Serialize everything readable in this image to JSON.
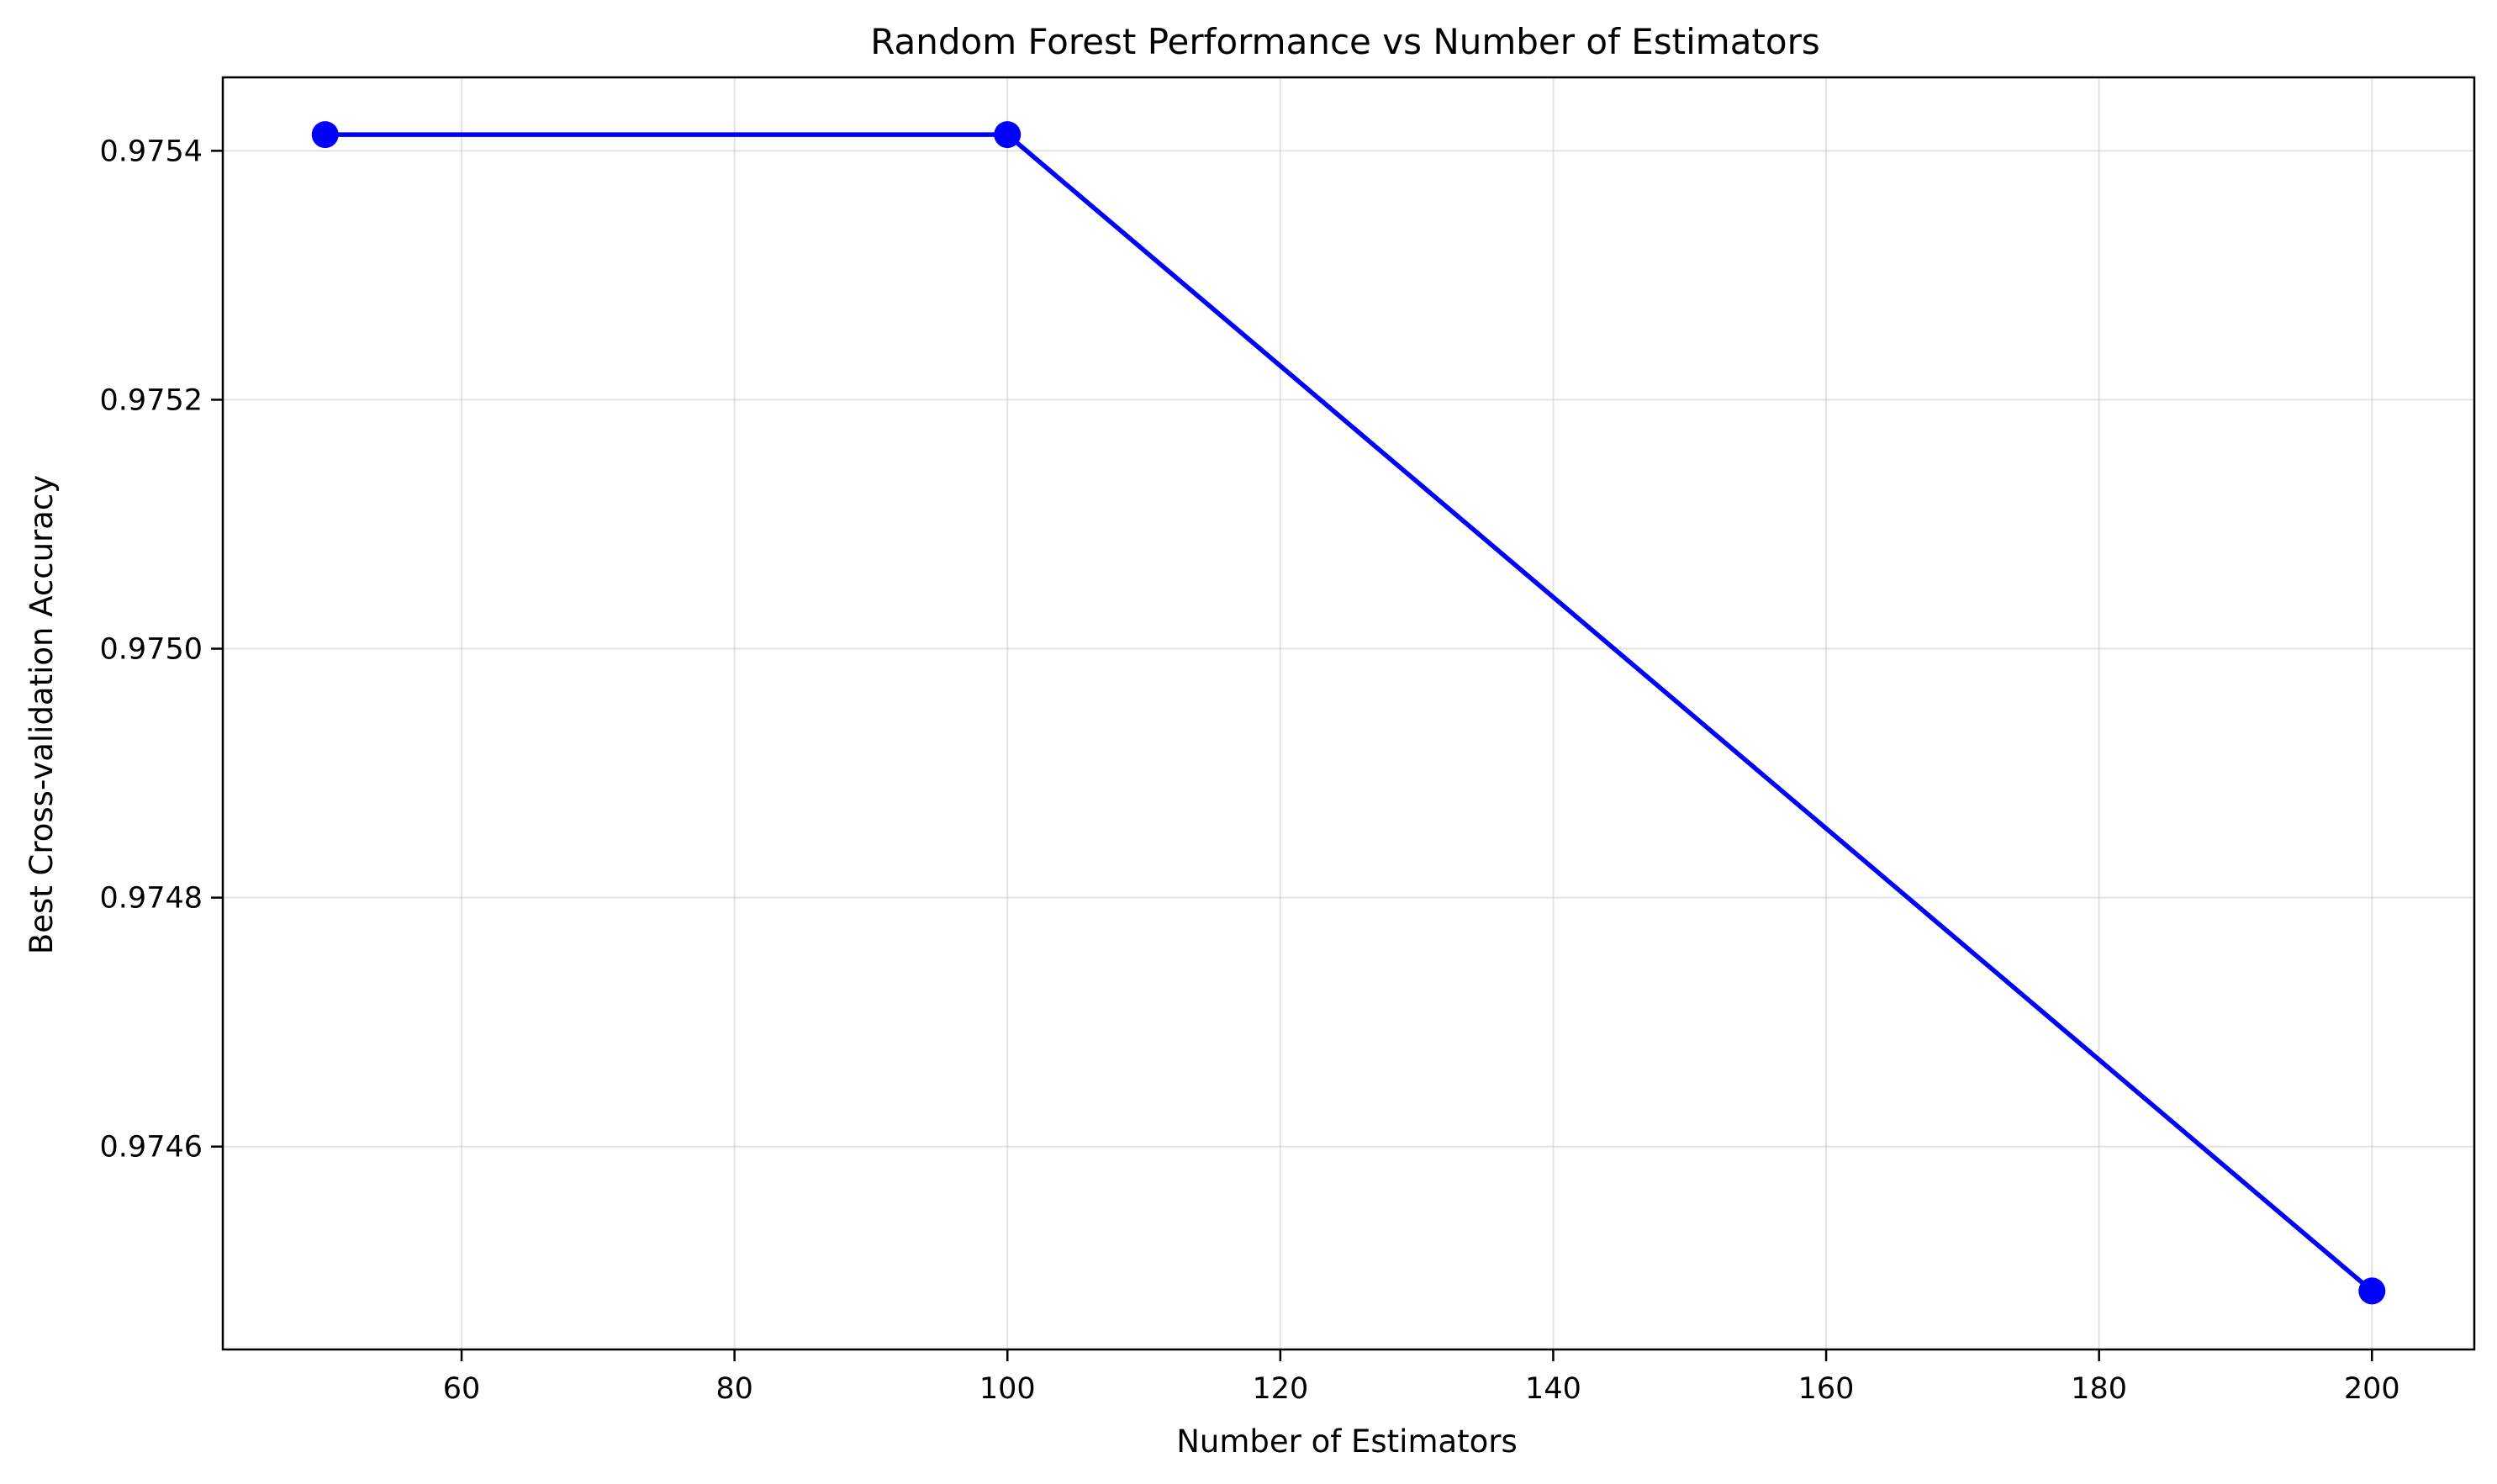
{
  "chart_data": {
    "type": "line",
    "title": "Random Forest Performance vs Number of Estimators",
    "xlabel": "Number of Estimators",
    "ylabel": "Best Cross-validation Accuracy",
    "x": [
      50,
      100,
      200
    ],
    "series": [
      {
        "values": [
          0.975413,
          0.975413,
          0.974484
        ],
        "color": "#0000ff",
        "marker": "circle"
      }
    ],
    "xlim": [
      42.5,
      207.5
    ],
    "ylim": [
      0.974437,
      0.975459
    ],
    "xticks": [
      60,
      80,
      100,
      120,
      140,
      160,
      180,
      200
    ],
    "xtick_labels": [
      "60",
      "80",
      "100",
      "120",
      "140",
      "160",
      "180",
      "200"
    ],
    "yticks": [
      0.9746,
      0.9748,
      0.975,
      0.9752,
      0.9754
    ],
    "ytick_labels": [
      "0.9746",
      "0.9748",
      "0.9750",
      "0.9752",
      "0.9754"
    ],
    "grid": true,
    "legend": "none"
  }
}
